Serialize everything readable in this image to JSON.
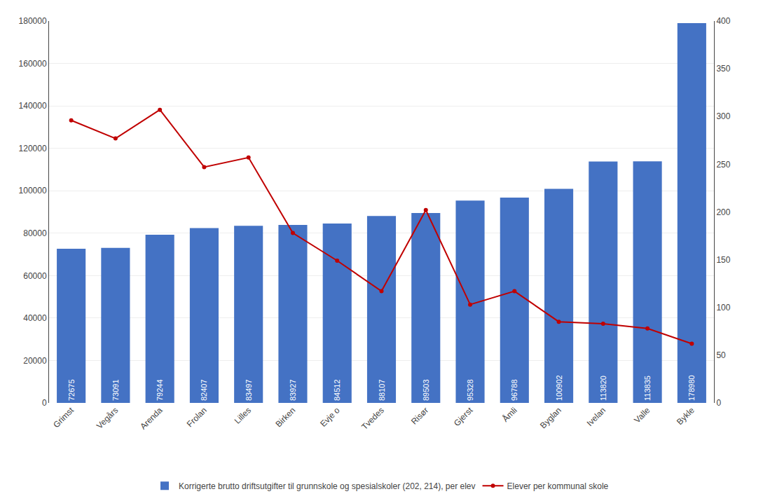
{
  "chart_data": {
    "type": "bar",
    "categories": [
      "Grimst",
      "Vegårs",
      "Arenda",
      "Frolan",
      "Lilles",
      "Birken",
      "Evje o",
      "Tvedes",
      "Risør",
      "Gjerst",
      "Åmli",
      "Byglan",
      "Ivelan",
      "Valle",
      "Bykle"
    ],
    "series": [
      {
        "name": "Korrigerte brutto driftsutgifter til grunnskole og spesialskoler (202, 214), per elev",
        "type": "bar",
        "color": "#4472C4",
        "data_labels": true,
        "values": [
          72675,
          73091,
          79244,
          82407,
          83497,
          83927,
          84512,
          88107,
          89503,
          95328,
          96788,
          100902,
          113820,
          113835,
          178980
        ]
      },
      {
        "name": "Elever per kommunal skole",
        "type": "line",
        "color": "#C00000",
        "marker": "circle",
        "line_style": "solid",
        "axis": "y2",
        "values": [
          296,
          277,
          307,
          247,
          257,
          178,
          149,
          117,
          202,
          103,
          117,
          85,
          83,
          78,
          62
        ]
      }
    ],
    "ylim": [
      0,
      180000
    ],
    "yticks": [
      0,
      20000,
      40000,
      60000,
      80000,
      100000,
      120000,
      140000,
      160000,
      180000
    ],
    "y2lim": [
      0,
      400
    ],
    "y2ticks": [
      0,
      50,
      100,
      150,
      200,
      250,
      300,
      350,
      400
    ],
    "grid": true,
    "legend": "bottom"
  }
}
